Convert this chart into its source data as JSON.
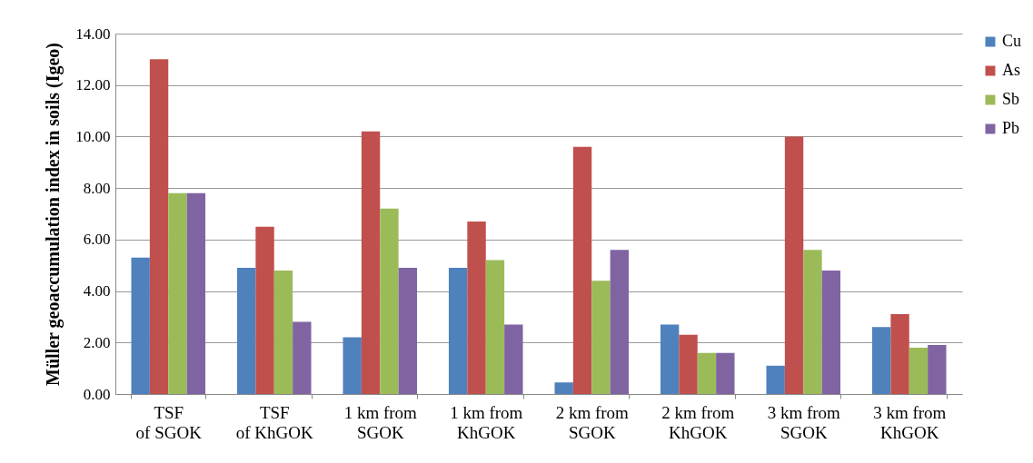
{
  "chart_data": {
    "type": "bar",
    "ylabel": "Müller geoaccumulation index in soils (Igeo)",
    "categories": [
      "TSF\nof SGOK",
      "TSF\nof KhGOK",
      "1 km from\nSGOK",
      "1 km from\nKhGOK",
      "2 km from\nSGOK",
      "2 km from\nKhGOK",
      "3 km from\nSGOK",
      "3 km from\nKhGOK"
    ],
    "series": [
      {
        "name": "Cu",
        "color": "#4f81bd",
        "values": [
          5.3,
          4.9,
          2.2,
          4.9,
          0.45,
          2.7,
          1.1,
          2.6
        ]
      },
      {
        "name": "As",
        "color": "#c0504d",
        "values": [
          13.0,
          6.5,
          10.2,
          6.7,
          9.6,
          2.3,
          10.0,
          3.1
        ]
      },
      {
        "name": "Sb",
        "color": "#9bbb59",
        "values": [
          7.8,
          4.8,
          7.2,
          5.2,
          4.4,
          1.6,
          5.6,
          1.8
        ]
      },
      {
        "name": "Pb",
        "color": "#8064a2",
        "values": [
          7.8,
          2.8,
          4.9,
          2.7,
          5.6,
          1.6,
          4.8,
          1.9
        ]
      }
    ],
    "ylim": [
      0,
      14
    ],
    "yticks": [
      {
        "value": 0,
        "label": "0.00"
      },
      {
        "value": 2,
        "label": "2.00"
      },
      {
        "value": 4,
        "label": "4.00"
      },
      {
        "value": 6,
        "label": "6.00"
      },
      {
        "value": 8,
        "label": "8.00"
      },
      {
        "value": 10,
        "label": "10.00"
      },
      {
        "value": 12,
        "label": "12.00"
      },
      {
        "value": 14,
        "label": "14.00"
      }
    ],
    "grid": "y",
    "legend": "right"
  }
}
